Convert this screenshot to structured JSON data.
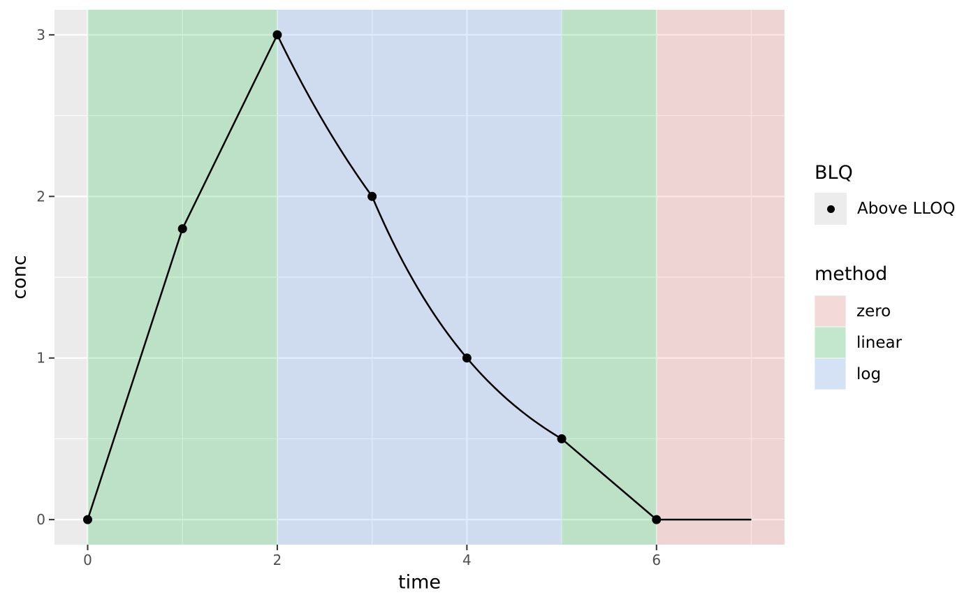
{
  "chart_data": {
    "type": "line",
    "title": "",
    "xlabel": "time",
    "ylabel": "conc",
    "x": [
      0,
      1,
      2,
      3,
      4,
      5,
      6
    ],
    "y": [
      0,
      1.8,
      3,
      2,
      1,
      0.5,
      0
    ],
    "line_end": {
      "x": 7,
      "y": 0
    },
    "x_ticks": [
      0,
      2,
      4,
      6
    ],
    "x_minor_ticks": [
      1,
      3,
      5,
      7
    ],
    "y_ticks": [
      0,
      1,
      2,
      3
    ],
    "y_minor_ticks": [
      0.5,
      1.5,
      2.5
    ],
    "xlim": [
      -0.35,
      7.35
    ],
    "ylim": [
      -0.155,
      3.155
    ],
    "grid": "on",
    "legend_position": "right",
    "regions": [
      {
        "method": "linear",
        "from": 0,
        "to": 2
      },
      {
        "method": "log",
        "from": 2,
        "to": 5
      },
      {
        "method": "linear",
        "from": 5,
        "to": 6
      },
      {
        "method": "zero",
        "from": 6,
        "to": 7.35
      }
    ],
    "method_colors": {
      "zero": "#F8766D",
      "linear": "#00BA38",
      "log": "#619CFF"
    },
    "region_alpha": 0.2,
    "theme": {
      "panel_bg": "#EBEBEB",
      "grid_color": "#FFFFFF",
      "tick_color": "#333333",
      "tick_label_color": "#4D4D4D",
      "axis_title_color": "#000000",
      "line_color": "#000000",
      "point_color": "#000000",
      "background": "#FFFFFF"
    }
  },
  "legend": {
    "blq": {
      "title": "BLQ",
      "items": [
        {
          "label": "Above LLOQ",
          "marker": "point-icon"
        }
      ]
    },
    "method": {
      "title": "method",
      "items": [
        {
          "label": "zero",
          "key": "zero"
        },
        {
          "label": "linear",
          "key": "linear"
        },
        {
          "label": "log",
          "key": "log"
        }
      ]
    }
  }
}
